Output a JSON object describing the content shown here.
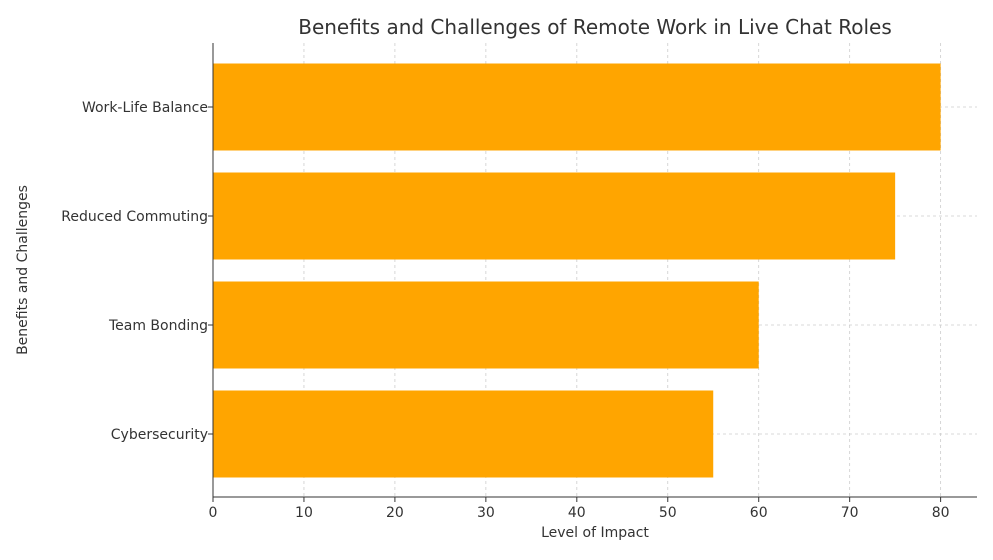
{
  "chart_data": {
    "type": "bar",
    "orientation": "horizontal",
    "title": "Benefits and Challenges of Remote Work in Live Chat Roles",
    "xlabel": "Level of Impact",
    "ylabel": "Benefits and Challenges",
    "categories": [
      "Work-Life Balance",
      "Reduced Commuting",
      "Team Bonding",
      "Cybersecurity"
    ],
    "values": [
      80,
      75,
      60,
      55
    ],
    "xlim": [
      0,
      84
    ],
    "xticks": [
      0,
      10,
      20,
      30,
      40,
      50,
      60,
      70,
      80
    ],
    "grid": true,
    "bar_color": "#FFA500"
  }
}
